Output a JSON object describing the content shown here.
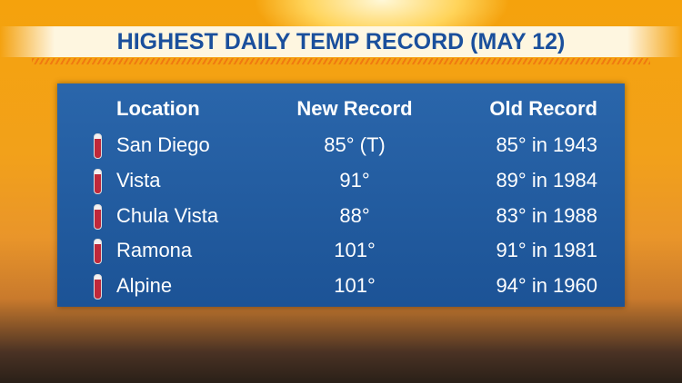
{
  "header": {
    "title": "HIGHEST DAILY TEMP RECORD (MAY 12)"
  },
  "table": {
    "columns": [
      "Location",
      "New Record",
      "Old Record"
    ],
    "rows": [
      [
        "San Diego",
        "85° (T)",
        "85° in 1943"
      ],
      [
        "Vista",
        "91°",
        "89° in 1984"
      ],
      [
        "Chula Vista",
        "88°",
        "83° in 1988"
      ],
      [
        "Ramona",
        "101°",
        "91° in 1981"
      ],
      [
        "Alpine",
        "101°",
        "94° in 1960"
      ]
    ]
  }
}
